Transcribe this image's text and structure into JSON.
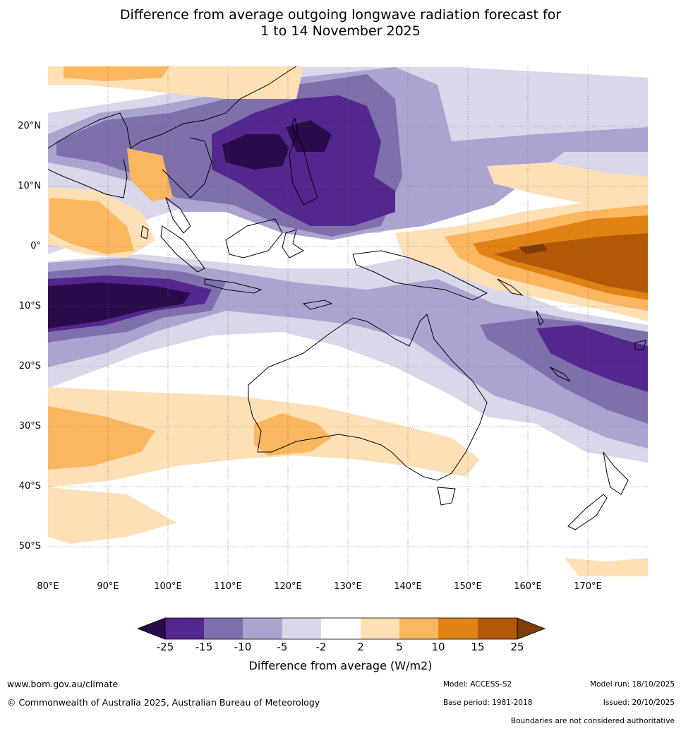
{
  "title_line1": "Difference from average outgoing longwave radiation forecast for",
  "title_line2": "1 to 14 November 2025",
  "lat_labels": [
    "20°N",
    "10°N",
    "0°",
    "10°S",
    "20°S",
    "30°S",
    "40°S",
    "50°S"
  ],
  "lon_labels": [
    "80°E",
    "90°E",
    "100°E",
    "110°E",
    "120°E",
    "130°E",
    "140°E",
    "150°E",
    "160°E",
    "170°E"
  ],
  "legend": {
    "ticks": [
      "-25",
      "-15",
      "-10",
      "-5",
      "-2",
      "2",
      "5",
      "10",
      "15",
      "25"
    ],
    "colors": [
      "#2a0a4a",
      "#54278f",
      "#7f6fad",
      "#aca4d0",
      "#d9d8ea",
      "#ffffff",
      "#fde0b6",
      "#fbb660",
      "#e08214",
      "#b35806",
      "#7f3b08"
    ],
    "title": "Difference from average (W/m2)"
  },
  "footer": {
    "url": "www.bom.gov.au/climate",
    "copyright": "© Commonwealth of Australia 2025, Australian Bureau of Meteorology",
    "model": "Model: ACCESS-S2",
    "base_period": "Base period: 1981-2018",
    "model_run": "Model run: 18/10/2025",
    "issued": "Issued: 20/10/2025",
    "disclaimer": "Boundaries are not considered authoritative"
  }
}
